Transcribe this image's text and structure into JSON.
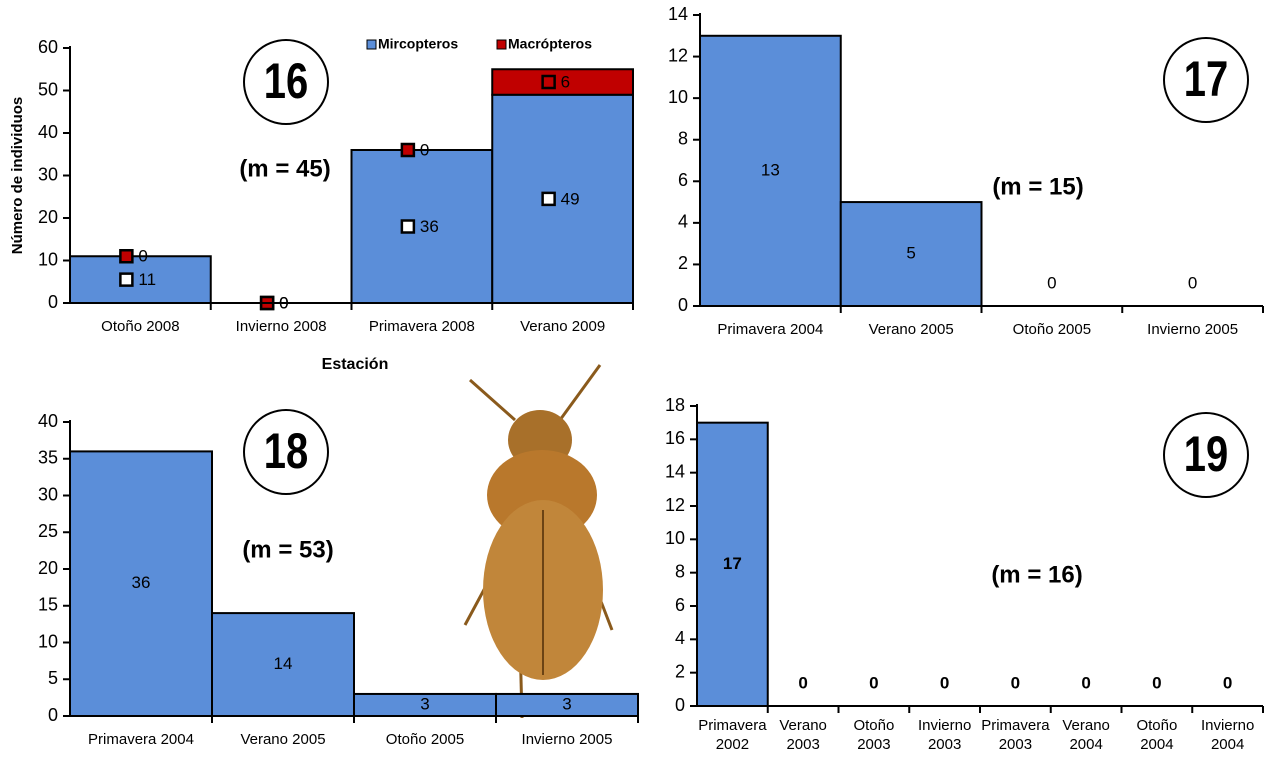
{
  "chart_data": [
    {
      "type": "stacked_bar",
      "panel_label": "16",
      "annotation": "(m = 45)",
      "ylabel": "Número de individuos",
      "xlabel": "Estación",
      "categories": [
        "Otoño 2008",
        "Invierno 2008",
        "Primavera 2008",
        "Verano 2009"
      ],
      "series": [
        {
          "name": "Mircopteros",
          "color": "#5b8ed9",
          "values": [
            11,
            0,
            36,
            49
          ]
        },
        {
          "name": "Macrópteros",
          "color": "#c00000",
          "values": [
            0,
            0,
            0,
            6
          ]
        }
      ],
      "ylim": [
        0,
        60
      ],
      "yticks": [
        0,
        10,
        20,
        30,
        40,
        50,
        60
      ]
    },
    {
      "type": "bar",
      "panel_label": "17",
      "annotation": "(m = 15)",
      "categories": [
        "Primavera 2004",
        "Verano 2005",
        "Otoño 2005",
        "Invierno 2005"
      ],
      "values": [
        13,
        5,
        0,
        0
      ],
      "color": "#5b8ed9",
      "ylim": [
        0,
        14
      ],
      "yticks": [
        0,
        2,
        4,
        6,
        8,
        10,
        12,
        14
      ]
    },
    {
      "type": "bar",
      "panel_label": "18",
      "annotation": "(m = 53)",
      "categories": [
        "Primavera 2004",
        "Verano 2005",
        "Otoño 2005",
        "Invierno 2005"
      ],
      "values": [
        36,
        14,
        3,
        3
      ],
      "color": "#5b8ed9",
      "ylim": [
        0,
        40
      ],
      "yticks": [
        0,
        5,
        10,
        15,
        20,
        25,
        30,
        35,
        40
      ]
    },
    {
      "type": "bar",
      "panel_label": "19",
      "annotation": "(m = 16)",
      "categories": [
        "Primavera 2002",
        "Verano 2003",
        "Otoño 2003",
        "Invierno 2003",
        "Primavera 2003",
        "Verano 2004",
        "Otoño 2004",
        "Invierno 2004"
      ],
      "values": [
        17,
        0,
        0,
        0,
        0,
        0,
        0,
        0
      ],
      "color": "#5b8ed9",
      "ylim": [
        0,
        18
      ],
      "yticks": [
        0,
        2,
        4,
        6,
        8,
        10,
        12,
        14,
        16,
        18
      ]
    }
  ]
}
